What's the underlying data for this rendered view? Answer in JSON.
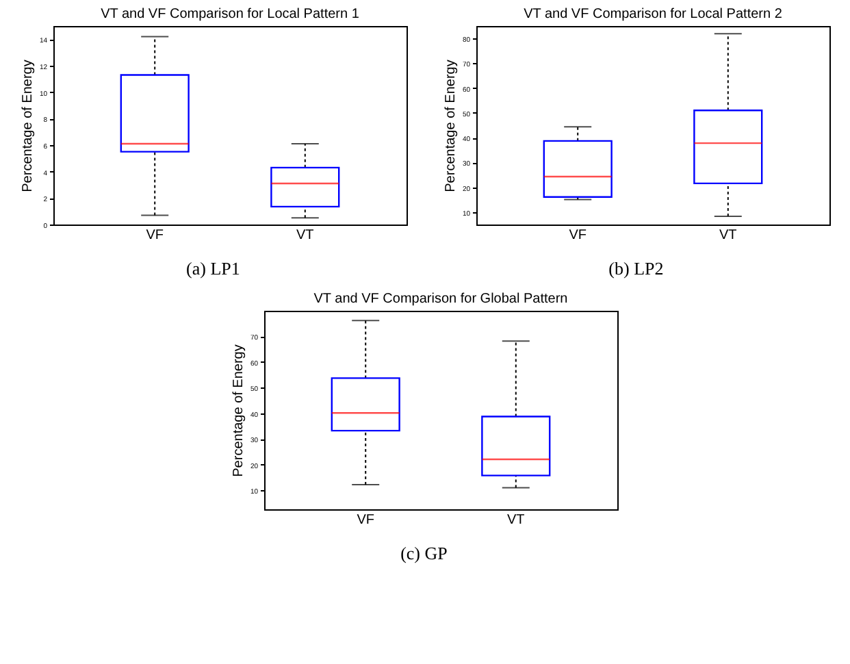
{
  "chart_data": [
    {
      "type": "box",
      "title": "VT and VF Comparison for Local Pattern 1",
      "ylabel": "Percentage of Energy",
      "categories": [
        "VF",
        "VT"
      ],
      "ylim": [
        0,
        15
      ],
      "yticks": [
        0,
        2,
        4,
        6,
        8,
        10,
        12,
        14
      ],
      "grid": false,
      "annotations": [
        "(a) LP1"
      ],
      "boxes": [
        {
          "low": 0.7,
          "q1": 5.5,
          "median": 6.1,
          "q3": 11.3,
          "high": 14.2
        },
        {
          "low": 0.5,
          "q1": 1.35,
          "median": 3.1,
          "q3": 4.3,
          "high": 6.1
        }
      ]
    },
    {
      "type": "box",
      "title": "VT and VF Comparison for Local Pattern 2",
      "ylabel": "Percentage of Energy",
      "categories": [
        "VF",
        "VT"
      ],
      "ylim": [
        5,
        85
      ],
      "yticks": [
        10,
        20,
        30,
        40,
        50,
        60,
        70,
        80
      ],
      "grid": false,
      "annotations": [
        "(b) LP2"
      ],
      "boxes": [
        {
          "low": 15.1,
          "q1": 16.1,
          "median": 24.3,
          "q3": 38.7,
          "high": 44.4
        },
        {
          "low": 8.3,
          "q1": 21.6,
          "median": 37.8,
          "q3": 51,
          "high": 81.9
        }
      ]
    },
    {
      "type": "box",
      "title": "VT and VF Comparison for Global Pattern",
      "ylabel": "Percentage of Energy",
      "categories": [
        "VF",
        "VT"
      ],
      "ylim": [
        2.5,
        80
      ],
      "yticks": [
        10,
        20,
        30,
        40,
        50,
        60,
        70
      ],
      "grid": false,
      "annotations": [
        "(c) GP"
      ],
      "boxes": [
        {
          "low": 12.1,
          "q1": 33.2,
          "median": 40.1,
          "q3": 53.7,
          "high": 76.2
        },
        {
          "low": 10.9,
          "q1": 15.7,
          "median": 22,
          "q3": 38.7,
          "high": 68.2
        }
      ]
    }
  ]
}
